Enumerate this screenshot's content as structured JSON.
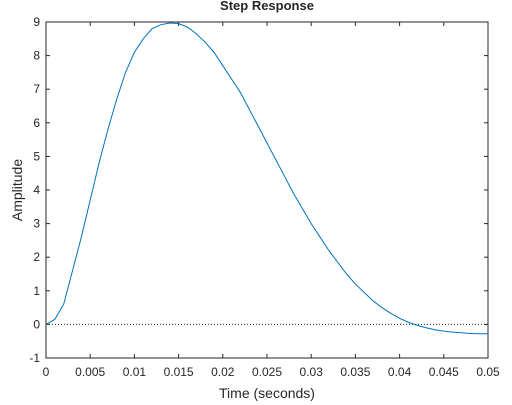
{
  "chart_data": {
    "type": "line",
    "title": "Step Response",
    "x_label": "Time (seconds)",
    "y_label": "Amplitude",
    "x": [
      0,
      0.001,
      0.002,
      0.003,
      0.004,
      0.005,
      0.006,
      0.007,
      0.008,
      0.009,
      0.01,
      0.011,
      0.012,
      0.013,
      0.014,
      0.015,
      0.016,
      0.017,
      0.018,
      0.019,
      0.02,
      0.021,
      0.022,
      0.023,
      0.024,
      0.025,
      0.026,
      0.027,
      0.028,
      0.029,
      0.03,
      0.031,
      0.032,
      0.033,
      0.034,
      0.035,
      0.036,
      0.037,
      0.038,
      0.039,
      0.04,
      0.041,
      0.042,
      0.043,
      0.044,
      0.045,
      0.046,
      0.047,
      0.048,
      0.049,
      0.05
    ],
    "values": [
      0,
      0.15,
      0.6,
      1.6,
      2.6,
      3.7,
      4.8,
      5.8,
      6.7,
      7.5,
      8.1,
      8.5,
      8.8,
      8.92,
      8.97,
      8.95,
      8.85,
      8.65,
      8.4,
      8.1,
      7.7,
      7.3,
      6.9,
      6.4,
      5.9,
      5.4,
      4.9,
      4.4,
      3.9,
      3.45,
      3.0,
      2.6,
      2.2,
      1.85,
      1.5,
      1.2,
      0.95,
      0.7,
      0.5,
      0.33,
      0.18,
      0.06,
      -0.03,
      -0.1,
      -0.16,
      -0.2,
      -0.23,
      -0.25,
      -0.27,
      -0.28,
      -0.28
    ],
    "color": "#0072bd",
    "reference_line": 0,
    "xlim": [
      0,
      0.05
    ],
    "xticks": [
      0,
      0.005,
      0.01,
      0.015,
      0.02,
      0.025,
      0.03,
      0.035,
      0.04,
      0.045,
      0.05
    ],
    "ylim": [
      -1,
      9
    ],
    "yticks": [
      -1,
      0,
      1,
      2,
      3,
      4,
      5,
      6,
      7,
      8,
      9
    ]
  }
}
